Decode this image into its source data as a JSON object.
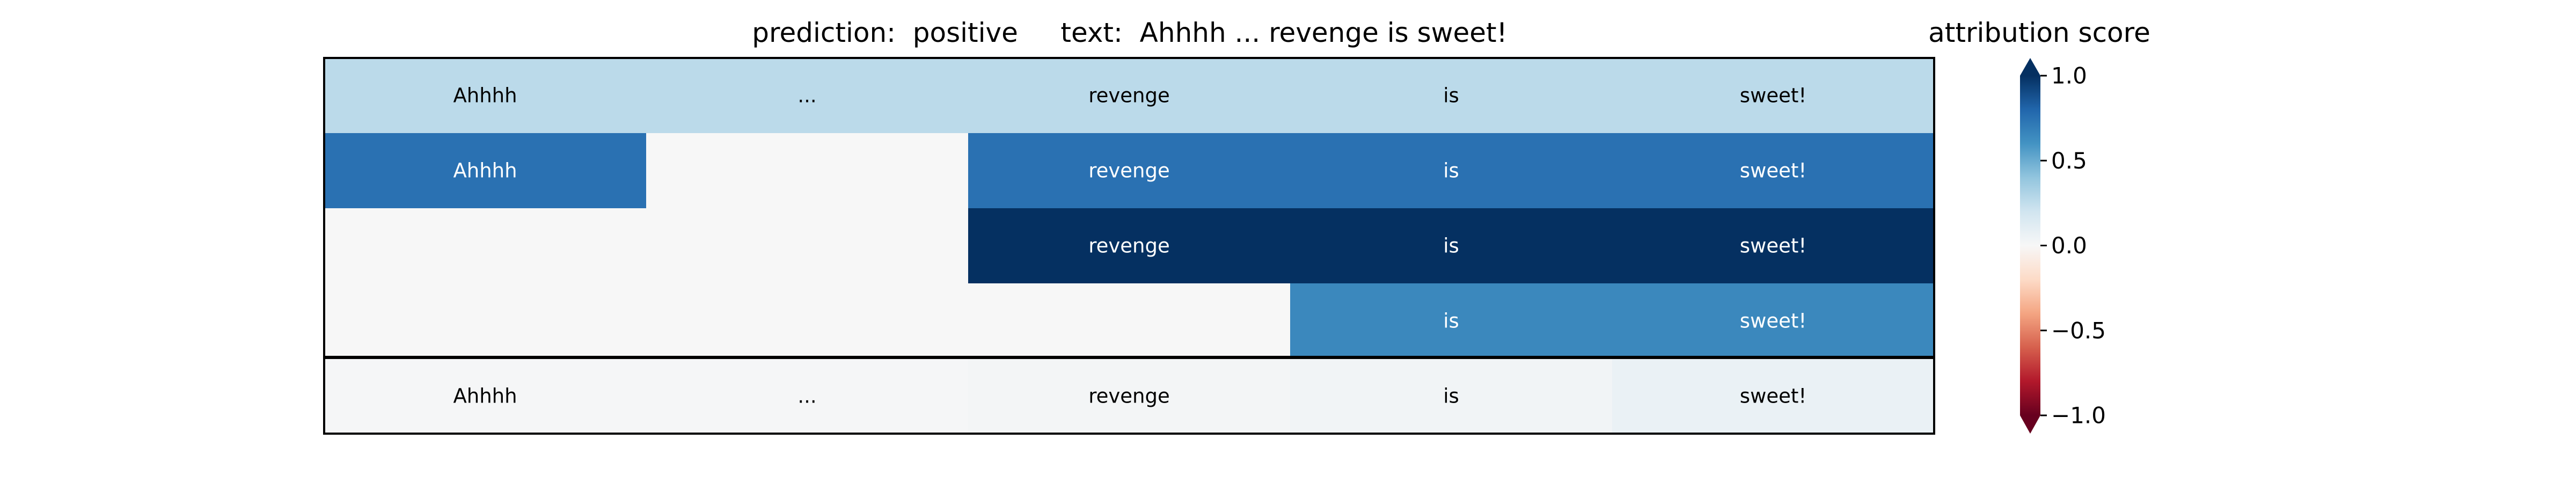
{
  "chart_data": {
    "type": "heatmap",
    "title": "prediction:  positive     text:  Ahhhh ... revenge is sweet!",
    "columns": [
      "Ahhhh",
      "...",
      "revenge",
      "is",
      "sweet!"
    ],
    "rows": [
      {
        "cells": [
          {
            "label": "Ahhhh",
            "value": 0.27
          },
          {
            "label": "...",
            "value": 0.27
          },
          {
            "label": "revenge",
            "value": 0.27
          },
          {
            "label": "is",
            "value": 0.27
          },
          {
            "label": "sweet!",
            "value": 0.27
          }
        ]
      },
      {
        "cells": [
          {
            "label": "Ahhhh",
            "value": 0.75
          },
          {
            "label": "",
            "value": 0.0
          },
          {
            "label": "revenge",
            "value": 0.75
          },
          {
            "label": "is",
            "value": 0.75
          },
          {
            "label": "sweet!",
            "value": 0.75
          }
        ]
      },
      {
        "cells": [
          {
            "label": "",
            "value": 0.0
          },
          {
            "label": "",
            "value": 0.0
          },
          {
            "label": "revenge",
            "value": 1.0
          },
          {
            "label": "is",
            "value": 1.0
          },
          {
            "label": "sweet!",
            "value": 1.0
          }
        ]
      },
      {
        "cells": [
          {
            "label": "",
            "value": 0.0
          },
          {
            "label": "",
            "value": 0.0
          },
          {
            "label": "",
            "value": 0.0
          },
          {
            "label": "is",
            "value": 0.65
          },
          {
            "label": "sweet!",
            "value": 0.65
          }
        ]
      }
    ],
    "summary_row": {
      "cells": [
        {
          "label": "Ahhhh",
          "value": 0.01
        },
        {
          "label": "...",
          "value": 0.01
        },
        {
          "label": "revenge",
          "value": 0.02
        },
        {
          "label": "is",
          "value": 0.03
        },
        {
          "label": "sweet!",
          "value": 0.07
        }
      ]
    },
    "colorbar": {
      "title": "attribution score",
      "colormap": "RdBu",
      "range": [
        -1.0,
        1.0
      ],
      "ticks": [
        1.0,
        0.5,
        0.0,
        -0.5,
        -1.0
      ],
      "tick_labels": [
        "1.0",
        "0.5",
        "0.0",
        "−0.5",
        "−1.0"
      ],
      "extend": "both"
    }
  }
}
